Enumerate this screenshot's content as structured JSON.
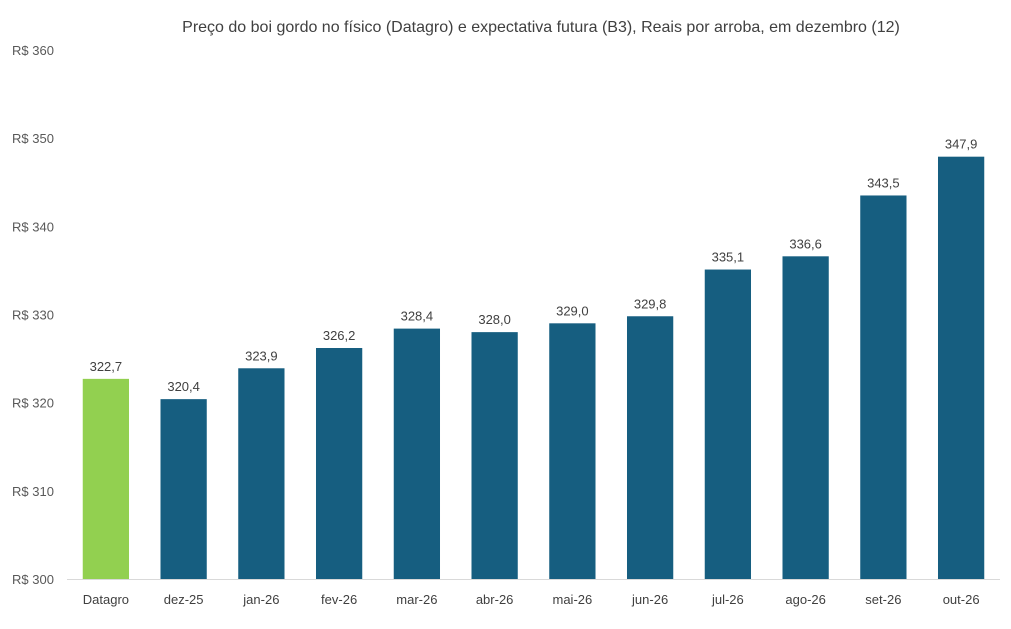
{
  "chart_data": {
    "type": "bar",
    "title": "Preço do boi gordo no físico (Datagro)  e expectativa futura (B3), Reais por arroba, em dezembro (12)",
    "categories": [
      "Datagro",
      "dez-25",
      "jan-26",
      "fev-26",
      "mar-26",
      "abr-26",
      "mai-26",
      "jun-26",
      "jul-26",
      "ago-26",
      "set-26",
      "out-26"
    ],
    "values": [
      322.7,
      320.4,
      323.9,
      326.2,
      328.4,
      328.0,
      329.0,
      329.8,
      335.1,
      336.6,
      343.5,
      347.9
    ],
    "value_labels": [
      "322,7",
      "320,4",
      "323,9",
      "326,2",
      "328,4",
      "328,0",
      "329,0",
      "329,8",
      "335,1",
      "336,6",
      "343,5",
      "347,9"
    ],
    "ylim": [
      300,
      360
    ],
    "yticks": [
      300,
      310,
      320,
      330,
      340,
      350,
      360
    ],
    "ytick_labels": [
      "R$ 300",
      "R$ 310",
      "R$ 320",
      "R$ 330",
      "R$ 340",
      "R$ 350",
      "R$ 360"
    ],
    "colors": {
      "highlight": "#92d050",
      "default": "#165e80"
    },
    "highlight_category": "Datagro",
    "grid": false,
    "legend": "none"
  }
}
